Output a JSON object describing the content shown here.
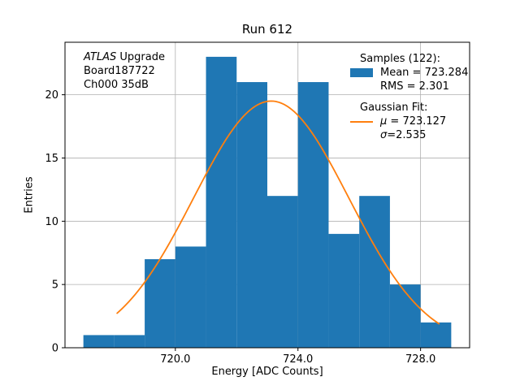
{
  "title": "Run 612",
  "annotation": {
    "atlas": "ATLAS",
    "upgrade": " Upgrade",
    "board": "Board187722",
    "channel": "Ch000 35dB"
  },
  "legend": {
    "samples_header": "Samples (122):",
    "mean": "Mean = 723.284",
    "rms": "RMS = 2.301",
    "fit_header": "Gaussian Fit:",
    "mu_symbol": "μ",
    "mu_value": " = 723.127",
    "sigma_symbol": "σ",
    "sigma_value": "=2.535"
  },
  "chart_data": {
    "type": "bar",
    "subtype": "histogram",
    "title": "Run 612",
    "xlabel": "Energy [ADC Counts]",
    "ylabel": "Entries",
    "bin_edges": [
      717,
      718,
      719,
      720,
      721,
      722,
      723,
      724,
      725,
      726,
      727,
      728,
      729
    ],
    "counts": [
      1,
      1,
      7,
      8,
      23,
      21,
      12,
      21,
      9,
      12,
      5,
      2
    ],
    "n_samples": 122,
    "mean": 723.284,
    "rms": 2.301,
    "xlim": [
      716.4,
      729.6
    ],
    "ylim": [
      0,
      24.15
    ],
    "xticks": {
      "values": [
        720.0,
        724.0,
        728.0
      ],
      "labels": [
        "720.0",
        "724.0",
        "728.0"
      ]
    },
    "yticks": {
      "values": [
        0,
        5,
        10,
        15,
        20
      ],
      "labels": [
        "0",
        "5",
        "10",
        "15",
        "20"
      ]
    },
    "grid": true,
    "legend_position": "upper right",
    "gaussian": {
      "mu": 723.127,
      "sigma": 2.535,
      "amplitude": 19.5,
      "x_range": [
        718.1,
        728.6
      ]
    },
    "colors": {
      "bar": "#1f77b4",
      "fit": "#ff7f0e",
      "grid": "#b0b0b0",
      "spine": "#000000"
    }
  }
}
